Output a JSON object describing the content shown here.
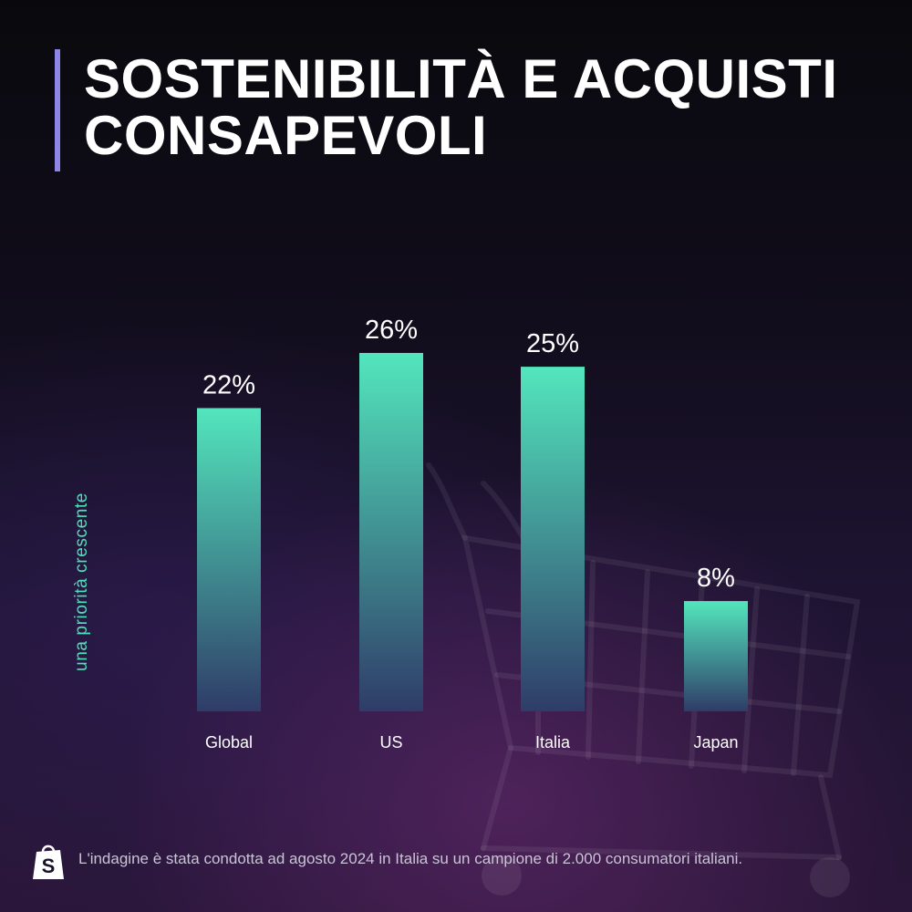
{
  "title": "SOSTENIBILITÀ E ACQUISTI CONSAPEVOLI",
  "footer": {
    "logo_icon": "shopify-bag-icon",
    "note": "L'indagine è stata condotta ad agosto 2024 in Italia su un campione di 2.000 consumatori italiani."
  },
  "chart_data": {
    "type": "bar",
    "title": "SOSTENIBILITÀ E ACQUISTI CONSAPEVOLI",
    "ylabel": "una priorità crescente",
    "xlabel": "",
    "categories": [
      "Global",
      "US",
      "Italia",
      "Japan"
    ],
    "values": [
      22,
      26,
      25,
      8
    ],
    "value_labels": [
      "22%",
      "26%",
      "25%",
      "8%"
    ],
    "unit": "%",
    "ylim": [
      0,
      26
    ],
    "grid": false,
    "legend": "none",
    "colors": {
      "bar_top": "#53e6bd",
      "bar_bottom": "#2f3c68",
      "label_text": "#ffffff",
      "ylabel_text": "#4fe0b8",
      "title_accent": "#8e86e6"
    }
  }
}
